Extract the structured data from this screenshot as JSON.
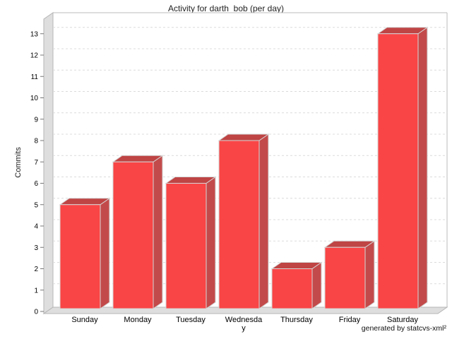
{
  "title": "Activity for darth_bob (per day)",
  "footer": "generated by statcvs-xml²",
  "chart_data": {
    "type": "bar",
    "style": "3d-bar",
    "title": "Activity for darth_bob (per day)",
    "categories": [
      "Sunday",
      "Monday",
      "Tuesday",
      "Wednesday",
      "Thursday",
      "Friday",
      "Saturday"
    ],
    "values": [
      5,
      7,
      6,
      8,
      2,
      3,
      13
    ],
    "xlabel": "",
    "ylabel": "Commits",
    "ylim": [
      0,
      13
    ],
    "ytick_step": 1,
    "grid": "horizontal-dashed",
    "legend": "none",
    "annotations": [
      "generated by statcvs-xml²"
    ],
    "colors": {
      "bar_front": "#F94546",
      "bar_side": "#C34A4A",
      "bar_top": "#BF4444",
      "bar_outline": "#D6D6D6",
      "wall_fill": "#DEDEDE",
      "wall_edge": "#B5B5B5",
      "gridline": "#DCDCDC",
      "plot_border": "#BBBBBB",
      "tick_mark": "#777777",
      "text": "#000000",
      "background": "#FFFFFF"
    }
  }
}
